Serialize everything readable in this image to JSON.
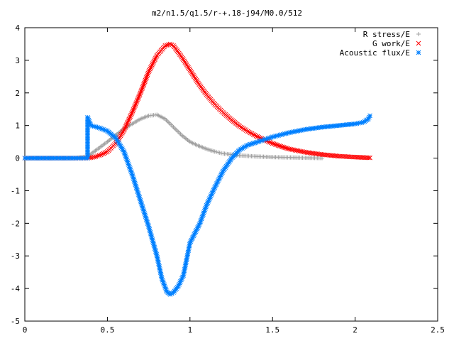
{
  "chart_data": {
    "type": "scatter",
    "title": "m2/n1.5/q1.5/r-+.18-j94/M0.0/512",
    "xlabel": "",
    "ylabel": "",
    "xlim": [
      0,
      2.5
    ],
    "ylim": [
      -5,
      4
    ],
    "xticks": [
      0,
      0.5,
      1,
      1.5,
      2,
      2.5
    ],
    "yticks": [
      -5,
      -4,
      -3,
      -2,
      -1,
      0,
      1,
      2,
      3,
      4
    ],
    "xtick_labels": [
      "0",
      "0.5",
      "1",
      "1.5",
      "2",
      "2.5"
    ],
    "ytick_labels": [
      "-5",
      "-4",
      "-3",
      "-2",
      "-1",
      "0",
      "1",
      "2",
      "3",
      "4"
    ],
    "grid": false,
    "legend_position": "top-right",
    "series": [
      {
        "name": "R stress/E",
        "marker": "plus",
        "color": "#a0a0a0",
        "x": [
          0.0,
          0.1,
          0.2,
          0.3,
          0.38,
          0.42,
          0.46,
          0.5,
          0.55,
          0.6,
          0.65,
          0.7,
          0.75,
          0.8,
          0.85,
          0.9,
          0.95,
          1.0,
          1.05,
          1.1,
          1.15,
          1.2,
          1.3,
          1.4,
          1.5,
          1.6,
          1.7,
          1.8
        ],
        "y": [
          0,
          0,
          0,
          0,
          0.05,
          0.2,
          0.35,
          0.5,
          0.7,
          0.9,
          1.05,
          1.2,
          1.3,
          1.33,
          1.2,
          0.95,
          0.7,
          0.5,
          0.38,
          0.28,
          0.2,
          0.14,
          0.08,
          0.05,
          0.03,
          0.02,
          0.01,
          0.0
        ]
      },
      {
        "name": "G work/E",
        "marker": "cross",
        "color": "#ff0000",
        "x": [
          0.0,
          0.1,
          0.2,
          0.3,
          0.38,
          0.42,
          0.46,
          0.5,
          0.55,
          0.6,
          0.65,
          0.7,
          0.75,
          0.8,
          0.85,
          0.88,
          0.9,
          0.95,
          1.0,
          1.05,
          1.1,
          1.15,
          1.2,
          1.25,
          1.3,
          1.35,
          1.4,
          1.45,
          1.5,
          1.55,
          1.6,
          1.7,
          1.8,
          1.9,
          2.0,
          2.09
        ],
        "y": [
          0,
          0,
          0,
          0,
          0,
          0.03,
          0.1,
          0.2,
          0.45,
          0.85,
          1.4,
          2.0,
          2.65,
          3.15,
          3.45,
          3.5,
          3.45,
          3.1,
          2.7,
          2.3,
          1.95,
          1.65,
          1.4,
          1.18,
          0.98,
          0.82,
          0.68,
          0.56,
          0.45,
          0.36,
          0.28,
          0.18,
          0.11,
          0.06,
          0.03,
          0.01
        ]
      },
      {
        "name": "Acoustic flux/E",
        "marker": "star",
        "color": "#0080ff",
        "x": [
          0.0,
          0.1,
          0.2,
          0.3,
          0.38,
          0.38,
          0.4,
          0.45,
          0.5,
          0.55,
          0.6,
          0.65,
          0.7,
          0.75,
          0.8,
          0.83,
          0.86,
          0.88,
          0.9,
          0.93,
          0.96,
          1.0,
          1.03,
          1.06,
          1.1,
          1.15,
          1.2,
          1.25,
          1.3,
          1.35,
          1.4,
          1.5,
          1.6,
          1.7,
          1.8,
          1.9,
          2.0,
          2.05,
          2.08,
          2.09
        ],
        "y": [
          0,
          0,
          0,
          0,
          0,
          1.25,
          1.0,
          0.93,
          0.83,
          0.62,
          0.2,
          -0.5,
          -1.3,
          -2.1,
          -3.0,
          -3.7,
          -4.1,
          -4.18,
          -4.12,
          -3.92,
          -3.6,
          -2.6,
          -2.3,
          -2.0,
          -1.45,
          -0.9,
          -0.4,
          -0.02,
          0.25,
          0.4,
          0.48,
          0.65,
          0.78,
          0.88,
          0.95,
          1.0,
          1.05,
          1.1,
          1.2,
          1.3
        ]
      }
    ]
  }
}
